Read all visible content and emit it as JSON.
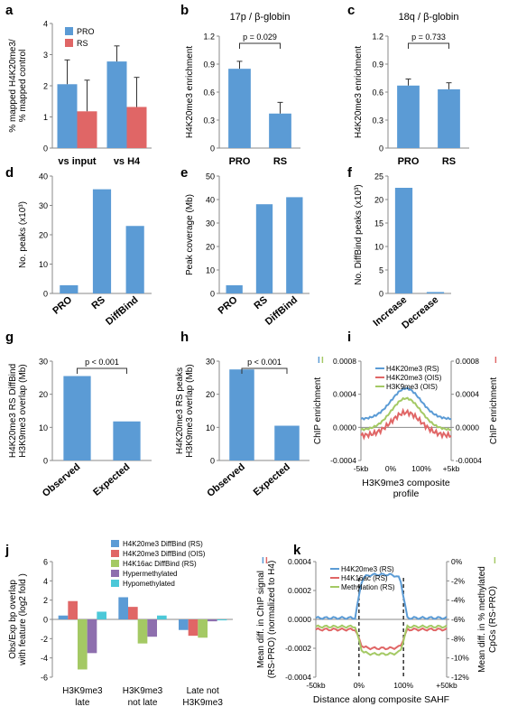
{
  "colors": {
    "blue": "#5b9bd5",
    "red": "#e06666",
    "green": "#a4c964",
    "purple": "#8e6fae",
    "cyan": "#4bc8d8",
    "axis": "#888888"
  },
  "chart_data": [
    {
      "id": "a",
      "letter": "a",
      "type": "bar",
      "ylabel": [
        "% mapped H4K20me3/",
        "% mapped control"
      ],
      "categories": [
        "vs input",
        "vs H4"
      ],
      "legend": [
        "PRO",
        "RS"
      ],
      "series": [
        {
          "name": "PRO",
          "color": "blue",
          "values": [
            2.05,
            2.78
          ],
          "err": [
            0.78,
            0.5
          ]
        },
        {
          "name": "RS",
          "color": "red",
          "values": [
            1.18,
            1.32
          ],
          "err": [
            1.0,
            0.95
          ]
        }
      ],
      "ylim": [
        0,
        4
      ],
      "yticks": [
        "0",
        "1",
        "2",
        "3",
        "4"
      ]
    },
    {
      "id": "b",
      "letter": "b",
      "type": "bar",
      "title": "17p / β-globin",
      "ylabel": [
        "H4K20me3 enrichment"
      ],
      "categories": [
        "PRO",
        "RS"
      ],
      "series": [
        {
          "name": "",
          "color": "blue",
          "values": [
            0.85,
            0.37
          ],
          "err": [
            0.08,
            0.12
          ]
        }
      ],
      "ylim": [
        0,
        1.2
      ],
      "yticks": [
        "0",
        "0.3",
        "0.6",
        "0.9",
        "1.2"
      ],
      "pvalue": "p = 0.029"
    },
    {
      "id": "c",
      "letter": "c",
      "type": "bar",
      "title": "18q / β-globin",
      "ylabel": [
        "H4K20me3 enrichment"
      ],
      "categories": [
        "PRO",
        "RS"
      ],
      "series": [
        {
          "name": "",
          "color": "blue",
          "values": [
            0.67,
            0.63
          ],
          "err": [
            0.07,
            0.07
          ]
        }
      ],
      "ylim": [
        0,
        1.2
      ],
      "yticks": [
        "0",
        "0.3",
        "0.6",
        "0.9",
        "1.2"
      ],
      "pvalue": "p = 0.733"
    },
    {
      "id": "d",
      "letter": "d",
      "type": "bar",
      "ylabel": [
        "No. peaks (x10³)"
      ],
      "categories": [
        "PRO",
        "RS",
        "DiffBind"
      ],
      "series": [
        {
          "name": "",
          "color": "blue",
          "values": [
            2.8,
            35.5,
            23
          ]
        }
      ],
      "ylim": [
        0,
        40
      ],
      "yticks": [
        "0",
        "10",
        "20",
        "30",
        "40"
      ]
    },
    {
      "id": "e",
      "letter": "e",
      "type": "bar",
      "ylabel": [
        "Peak coverage (Mb)"
      ],
      "categories": [
        "PRO",
        "RS",
        "DiffBind"
      ],
      "series": [
        {
          "name": "",
          "color": "blue",
          "values": [
            3.5,
            38,
            41
          ]
        }
      ],
      "ylim": [
        0,
        50
      ],
      "yticks": [
        "0",
        "10",
        "20",
        "30",
        "40",
        "50"
      ]
    },
    {
      "id": "f",
      "letter": "f",
      "type": "bar",
      "ylabel": [
        "No. DiffBind peaks (x10³)"
      ],
      "categories": [
        "Increase",
        "Decrease"
      ],
      "series": [
        {
          "name": "",
          "color": "blue",
          "values": [
            22.5,
            0.3
          ]
        }
      ],
      "ylim": [
        0,
        25
      ],
      "yticks": [
        "0",
        "5",
        "10",
        "15",
        "20",
        "25"
      ]
    },
    {
      "id": "g",
      "letter": "g",
      "type": "bar",
      "ylabel": [
        "H4K20me3 RS DiffBind",
        "H3K9me3 overlap (Mb)"
      ],
      "categories": [
        "Observed",
        "Expected"
      ],
      "series": [
        {
          "name": "",
          "color": "blue",
          "values": [
            25.5,
            11.8
          ]
        }
      ],
      "ylim": [
        0,
        30
      ],
      "yticks": [
        "0",
        "10",
        "20",
        "30"
      ],
      "pvalue": "p < 0.001"
    },
    {
      "id": "h",
      "letter": "h",
      "type": "bar",
      "ylabel": [
        "H4K20me3 RS peaks",
        "H3K9me3 overlap (Mb)"
      ],
      "categories": [
        "Observed",
        "Expected"
      ],
      "series": [
        {
          "name": "",
          "color": "blue",
          "values": [
            27.5,
            10.5
          ]
        }
      ],
      "ylim": [
        0,
        30
      ],
      "yticks": [
        "0",
        "10",
        "20",
        "30"
      ],
      "pvalue": "p < 0.001"
    },
    {
      "id": "i",
      "letter": "i",
      "type": "line",
      "xlabel": [
        "H3K9me3 composite",
        "profile"
      ],
      "ylabel_left": "ChIP enrichment",
      "ylabel_right": "ChIP enrichment",
      "yticks": [
        "-0.0004",
        "0.0000",
        "0.0004",
        "0.0008"
      ],
      "yvals": [
        -0.0004,
        0,
        0.0004,
        0.0008
      ],
      "xticks": [
        "-5kb",
        "0%",
        "100%",
        "+5kb"
      ],
      "series": [
        {
          "name": "H4K20me3 (RS)",
          "color": "blue",
          "base": 0.0001,
          "peak": 0.00047
        },
        {
          "name": "H4K20me3 (OIS)",
          "color": "red",
          "base": -0.0001,
          "peak": 0.00018
        },
        {
          "name": "H3K9me3 (OIS)",
          "color": "green",
          "base": -3e-05,
          "peak": 0.00035
        }
      ]
    },
    {
      "id": "j",
      "letter": "j",
      "type": "bar",
      "ylabel": [
        "Obs/Exp bp overlap",
        "with feature (log2 fold )"
      ],
      "categories": [
        [
          "H3K9me3",
          "late"
        ],
        [
          "H3K9me3",
          "not late"
        ],
        [
          "Late not",
          "H3K9me3"
        ]
      ],
      "legend": [
        "H4K20me3 DiffBind (RS)",
        "H4K20me3 DiffBind (OIS)",
        "H4K16ac DiffBind (RS)",
        "Hypermethylated",
        "Hypomethylated"
      ],
      "series": [
        {
          "name": "H4K20me3 DiffBind (RS)",
          "color": "blue",
          "values": [
            0.4,
            2.3,
            -1.1
          ]
        },
        {
          "name": "H4K20me3 DiffBind (OIS)",
          "color": "red",
          "values": [
            1.9,
            1.3,
            -1.7
          ]
        },
        {
          "name": "H4K16ac DiffBind (RS)",
          "color": "green",
          "values": [
            -5.2,
            -2.5,
            -1.9
          ]
        },
        {
          "name": "Hypermethylated",
          "color": "purple",
          "values": [
            -3.5,
            -1.8,
            -0.2
          ]
        },
        {
          "name": "Hypomethylated",
          "color": "cyan",
          "values": [
            0.8,
            0.4,
            -0.1
          ]
        }
      ],
      "ylim": [
        -6,
        6
      ],
      "yticks": [
        "-6",
        "-4",
        "-2",
        "0",
        "2",
        "4",
        "6"
      ]
    },
    {
      "id": "k",
      "letter": "k",
      "type": "line",
      "xlabel": [
        "Distance along composite SAHF"
      ],
      "ylabel_left": [
        "Mean diff. in ChIP signal",
        "(RS-PRO) (normalized to H4)"
      ],
      "ylabel_right": [
        "Mean diff. in % methylated",
        "CpGs (RS-PRO)"
      ],
      "yticks": [
        "-0.0004",
        "-0.0002",
        "0.0000",
        "0.0002",
        "0.0004"
      ],
      "yvals": [
        -0.0004,
        -0.0002,
        0,
        0.0002,
        0.0004
      ],
      "yticks_right": [
        "-12%",
        "-10%",
        "-8%",
        "-6%",
        "-4%",
        "-2%",
        "0%"
      ],
      "xticks": [
        "-50kb",
        "0%",
        "100%",
        "+50kb"
      ],
      "series": [
        {
          "name": "H4K20me3 (RS)",
          "color": "blue",
          "base": 1e-05,
          "mid": 0.00031,
          "shape": "dome"
        },
        {
          "name": "H4K16ac (RS)",
          "color": "red",
          "base": -7e-05,
          "mid": -0.0002,
          "shape": "bowl"
        },
        {
          "name": "Methylation (RS)",
          "color": "green",
          "base": -5e-05,
          "mid": -0.00024,
          "shape": "bowl"
        }
      ]
    }
  ]
}
